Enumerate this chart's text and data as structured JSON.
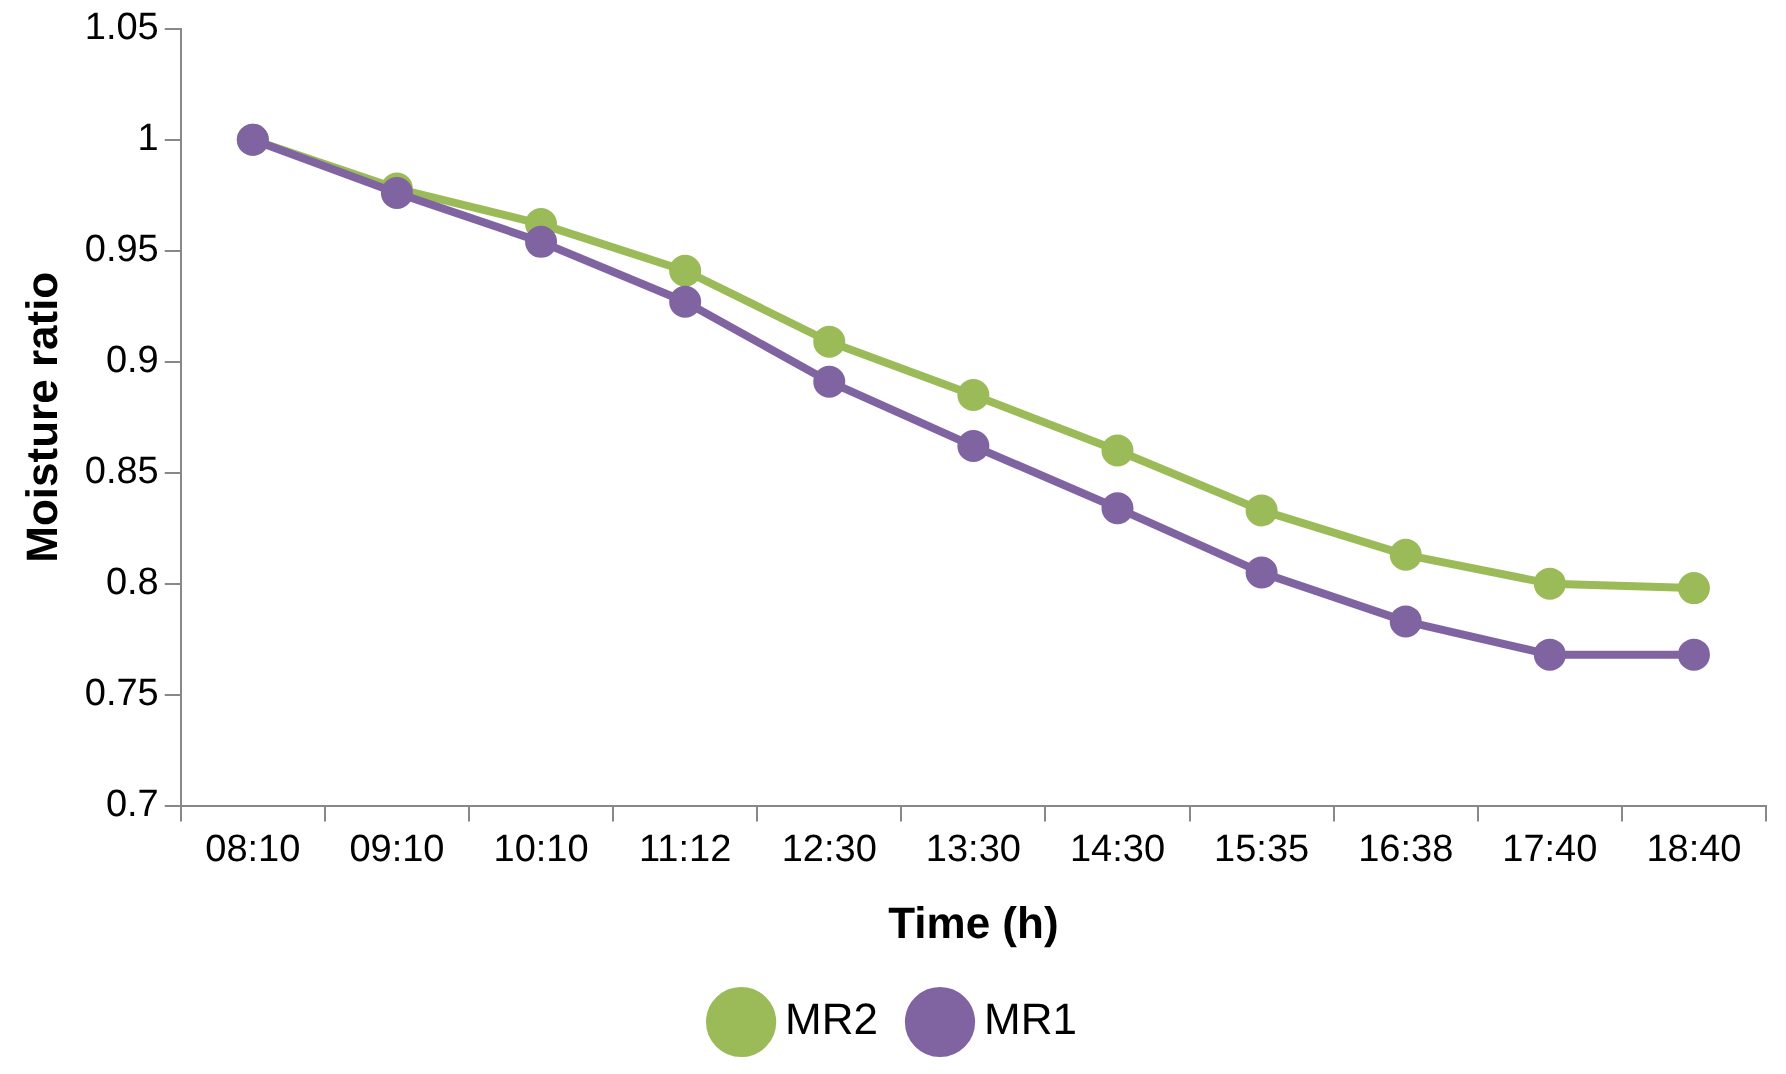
{
  "chart_data": {
    "type": "line",
    "xlabel": "Time (h)",
    "ylabel": "Moisture ratio",
    "categories": [
      "08:10",
      "09:10",
      "10:10",
      "11:12",
      "12:30",
      "13:30",
      "14:30",
      "15:35",
      "16:38",
      "17:40",
      "18:40"
    ],
    "series": [
      {
        "name": "MR2",
        "color": "#9bbb59",
        "values": [
          1,
          0.978,
          0.962,
          0.941,
          0.909,
          0.885,
          0.86,
          0.833,
          0.813,
          0.8,
          0.798
        ]
      },
      {
        "name": "MR1",
        "color": "#8064a2",
        "values": [
          1,
          0.976,
          0.954,
          0.927,
          0.891,
          0.862,
          0.834,
          0.805,
          0.783,
          0.768,
          0.768
        ]
      }
    ],
    "ylim": [
      0.7,
      1.05
    ],
    "yticks": [
      {
        "value": 0.7,
        "label": "0.7"
      },
      {
        "value": 0.75,
        "label": "0.75"
      },
      {
        "value": 0.8,
        "label": "0.8"
      },
      {
        "value": 0.85,
        "label": "0.85"
      },
      {
        "value": 0.9,
        "label": "0.9"
      },
      {
        "value": 0.95,
        "label": "0.95"
      },
      {
        "value": 1,
        "label": "1"
      },
      {
        "value": 1.05,
        "label": "1.05"
      }
    ],
    "grid": false,
    "legend": "bottom",
    "marker": "circle",
    "line_style": "solid"
  }
}
